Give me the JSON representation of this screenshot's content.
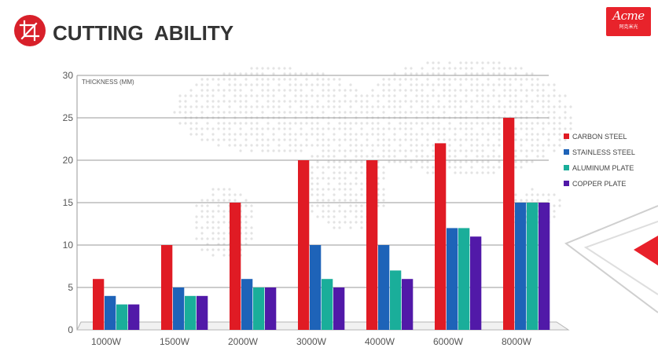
{
  "header": {
    "title": "CUTTING  ABILITY",
    "brand_icon": "crop-icon",
    "accent": "#d8202a"
  },
  "logo": {
    "word": "Acme",
    "sub": "阿克米光"
  },
  "chart_data": {
    "type": "bar",
    "ylabel": "THICKNESS (MM)",
    "ylim": [
      0,
      30
    ],
    "yticks": [
      0,
      5,
      10,
      15,
      20,
      25,
      30
    ],
    "categories": [
      "1000W",
      "1500W",
      "2000W",
      "3000W",
      "4000W",
      "6000W",
      "8000W"
    ],
    "series": [
      {
        "name": "CARBON STEEL",
        "color": "#e01b24",
        "values": [
          6,
          10,
          15,
          20,
          20,
          22,
          25
        ]
      },
      {
        "name": "STAINLESS STEEL",
        "color": "#1e63b8",
        "values": [
          4,
          5,
          6,
          10,
          10,
          12,
          15
        ]
      },
      {
        "name": "ALUMINUM PLATE",
        "color": "#1aae9a",
        "values": [
          3,
          4,
          5,
          6,
          7,
          12,
          15
        ]
      },
      {
        "name": "COPPER PLATE",
        "color": "#5119a8",
        "values": [
          3,
          4,
          5,
          5,
          6,
          11,
          15
        ]
      }
    ],
    "legend_position": "right",
    "grid": true
  }
}
